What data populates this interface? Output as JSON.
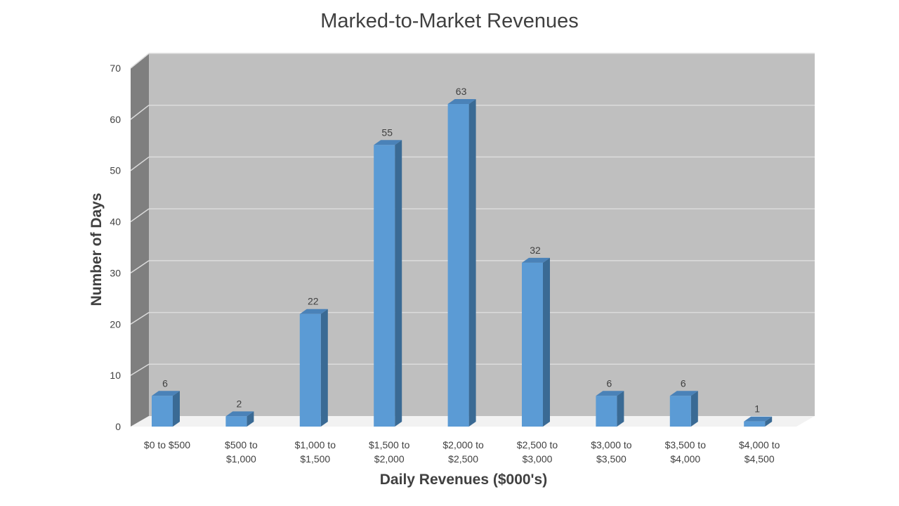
{
  "chart_data": {
    "type": "bar",
    "title": "Marked-to-Market Revenues",
    "xlabel": "Daily Revenues ($000's)",
    "ylabel": "Number of Days",
    "categories": [
      [
        "$0 to $500"
      ],
      [
        "$500 to",
        "$1,000"
      ],
      [
        "$1,000 to",
        "$1,500"
      ],
      [
        "$1,500 to",
        "$2,000"
      ],
      [
        "$2,000 to",
        "$2,500"
      ],
      [
        "$2,500 to",
        "$3,000"
      ],
      [
        "$3,000 to",
        "$3,500"
      ],
      [
        "$3,500 to",
        "$4,000"
      ],
      [
        "$4,000 to",
        "$4,500"
      ]
    ],
    "values": [
      6,
      2,
      22,
      55,
      63,
      32,
      6,
      6,
      1
    ],
    "yticks": [
      0,
      10,
      20,
      30,
      40,
      50,
      60,
      70
    ],
    "ylim": [
      0,
      70
    ],
    "grid": true,
    "legend": "none",
    "three_d": true,
    "colors": {
      "bar_front": "#5b9bd5",
      "bar_side": "#3a6a94",
      "bar_top": "#4a82b8",
      "wall": "#bfbfbf",
      "side_wall": "#7f7f7f",
      "gridline": "#dcdcdc",
      "text": "#404040"
    }
  }
}
